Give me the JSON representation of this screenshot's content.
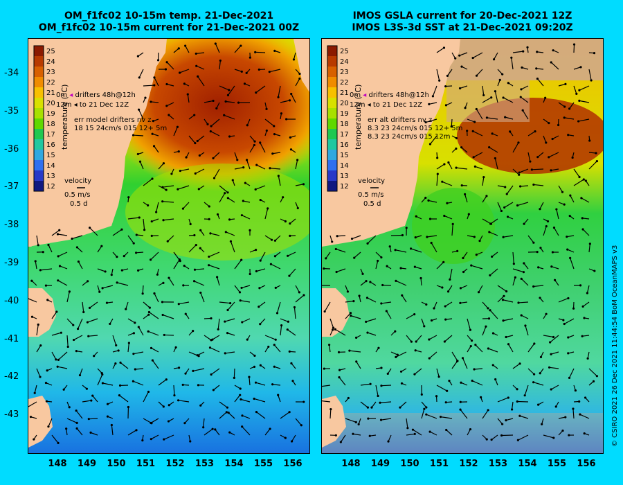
{
  "left_panel": {
    "title_line1": "OM_f1fc02 10-15m temp. 21-Dec-2021",
    "title_line2": "OM_f1fc02 10-15m current for 21-Dec-2021 00Z",
    "legend_drifter_1a": "0m",
    "legend_drifter_1b": "drifters 48h@12h",
    "legend_drifter_2a": "12m",
    "legend_drifter_2b": "to 21 Dec 12Z",
    "stats_header": "err model drifters nv z",
    "stats_row1": "18 15 24cm/s 015 12+ 5m",
    "velocity_label": "velocity",
    "velocity_speed": "0.5 m/s",
    "velocity_time": "0.5 d"
  },
  "right_panel": {
    "title_line1": "IMOS GSLA current for 20-Dec-2021 12Z",
    "title_line2": "IMOS L3S-3d SST at 21-Dec-2021 09:20Z",
    "legend_drifter_1a": "0m",
    "legend_drifter_1b": "drifters 48h@12h",
    "legend_drifter_2a": "12m",
    "legend_drifter_2b": "to 21 Dec 12Z",
    "stats_header": "err alt drifters nv z",
    "stats_row1": "8.3 23 24cm/s 015 12+ 5m",
    "stats_row2": "8.3 23 24cm/s 015 12m",
    "velocity_label": "velocity",
    "velocity_speed": "0.5 m/s",
    "velocity_time": "0.5 d"
  },
  "colorbar": {
    "title": "temperature (°C)",
    "labels": [
      "25",
      "24",
      "23",
      "22",
      "21",
      "20",
      "19",
      "18",
      "17",
      "16",
      "15",
      "14",
      "13",
      "12"
    ],
    "colors": [
      "#8b1a00",
      "#b83a00",
      "#d86000",
      "#f08c00",
      "#f8c000",
      "#d8e000",
      "#a8e000",
      "#60d800",
      "#20c850",
      "#20c8a0",
      "#30a8e0",
      "#3070f0",
      "#2838c8",
      "#101880"
    ]
  },
  "axes": {
    "y_ticks": [
      "-34",
      "-35",
      "-36",
      "-37",
      "-38",
      "-39",
      "-40",
      "-41",
      "-42",
      "-43"
    ],
    "x_ticks": [
      "148",
      "149",
      "150",
      "151",
      "152",
      "153",
      "154",
      "155",
      "156"
    ]
  },
  "credit": "© CSIRO 2021   26 Dec 2021 11:44:54 BoM OceanMAPS v3"
}
